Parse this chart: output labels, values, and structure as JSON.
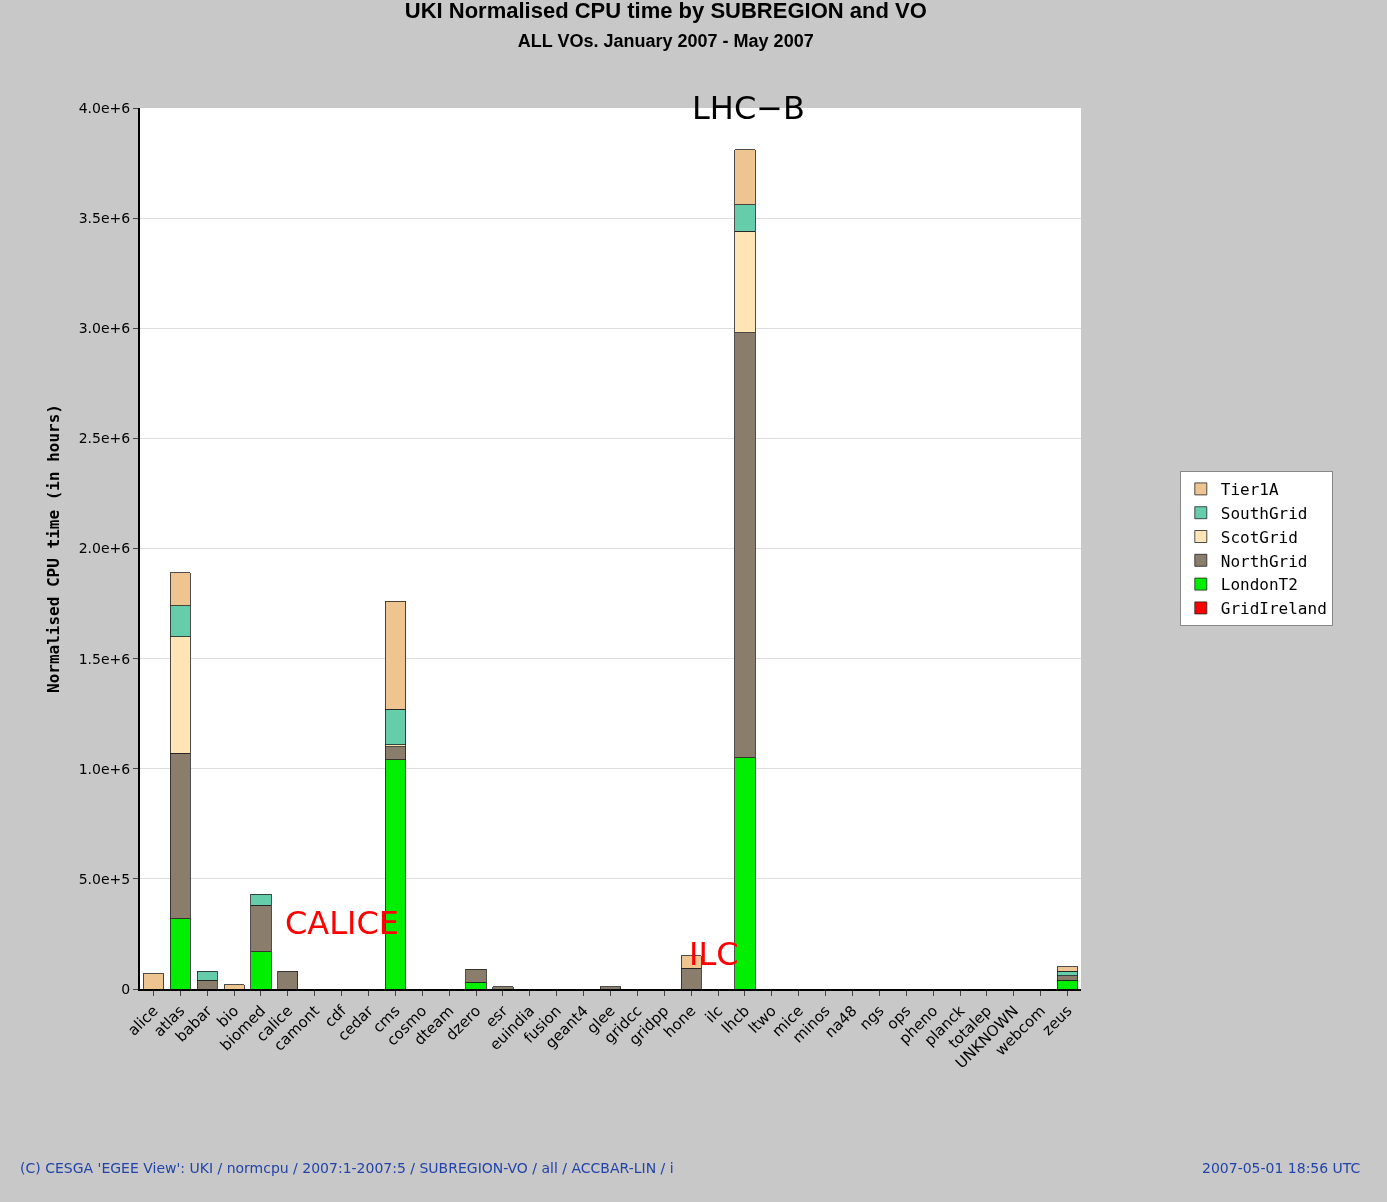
{
  "chart_data": {
    "type": "bar",
    "stacked": true,
    "title": "UKI Normalised CPU time by SUBREGION and VO",
    "subtitle": "ALL VOs. January 2007 - May 2007",
    "ylabel": "Normalised CPU time (in hours)",
    "categories": [
      "alice",
      "atlas",
      "babar",
      "bio",
      "biomed",
      "calice",
      "camont",
      "cdf",
      "cedar",
      "cms",
      "cosmo",
      "dteam",
      "dzero",
      "esr",
      "euindia",
      "fusion",
      "geant4",
      "glee",
      "gridcc",
      "gridpp",
      "hone",
      "ilc",
      "lhcb",
      "ltwo",
      "mice",
      "minos",
      "na48",
      "ngs",
      "ops",
      "pheno",
      "planck",
      "totalep",
      "UNKNOWN",
      "webcom",
      "zeus"
    ],
    "series": [
      {
        "name": "GridIreland",
        "color": "#ff0000",
        "values": [
          0,
          0,
          0,
          0,
          0,
          0,
          0,
          0,
          0,
          0,
          0,
          0,
          0,
          0,
          0,
          0,
          0,
          0,
          0,
          0,
          0,
          0,
          0,
          0,
          0,
          0,
          0,
          0,
          0,
          0,
          0,
          0,
          0,
          0,
          0
        ]
      },
      {
        "name": "LondonT2",
        "color": "#00ee00",
        "values": [
          0,
          320000,
          0,
          0,
          170000,
          0,
          0,
          0,
          0,
          1040000,
          0,
          0,
          30000,
          0,
          0,
          0,
          0,
          0,
          0,
          0,
          0,
          0,
          1050000,
          0,
          0,
          0,
          0,
          0,
          0,
          0,
          0,
          0,
          0,
          0,
          40000
        ]
      },
      {
        "name": "NorthGrid",
        "color": "#8b7d6b",
        "values": [
          0,
          750000,
          40000,
          0,
          210000,
          80000,
          0,
          0,
          0,
          60000,
          0,
          0,
          60000,
          10000,
          0,
          0,
          0,
          10000,
          0,
          0,
          95000,
          0,
          1930000,
          0,
          0,
          0,
          0,
          0,
          0,
          0,
          0,
          0,
          0,
          0,
          20000
        ]
      },
      {
        "name": "ScotGrid",
        "color": "#ffe4b5",
        "values": [
          0,
          530000,
          0,
          0,
          0,
          0,
          0,
          0,
          0,
          10000,
          0,
          0,
          0,
          0,
          0,
          0,
          0,
          0,
          0,
          0,
          0,
          0,
          460000,
          0,
          0,
          0,
          0,
          0,
          0,
          0,
          0,
          0,
          0,
          0,
          0
        ]
      },
      {
        "name": "SouthGrid",
        "color": "#66cdaa",
        "values": [
          0,
          140000,
          40000,
          0,
          50000,
          0,
          0,
          0,
          0,
          160000,
          0,
          0,
          0,
          0,
          0,
          0,
          0,
          0,
          0,
          0,
          0,
          0,
          120000,
          0,
          0,
          0,
          0,
          0,
          0,
          0,
          0,
          0,
          0,
          0,
          20000
        ]
      },
      {
        "name": "Tier1A",
        "color": "#eec591",
        "values": [
          70000,
          150000,
          0,
          20000,
          0,
          0,
          0,
          0,
          0,
          490000,
          0,
          0,
          0,
          0,
          0,
          0,
          0,
          0,
          0,
          0,
          55000,
          0,
          250000,
          0,
          0,
          0,
          0,
          0,
          0,
          0,
          0,
          0,
          0,
          0,
          20000
        ]
      }
    ],
    "ylim": [
      0,
      4000000
    ],
    "yticks": [
      0,
      {
        "value": 500000,
        "label": "5.0e+5"
      },
      {
        "value": 1000000,
        "label": "1.0e+6"
      },
      {
        "value": 1500000,
        "label": "1.5e+6"
      },
      {
        "value": 2000000,
        "label": "2.0e+6"
      },
      {
        "value": 2500000,
        "label": "2.5e+6"
      },
      {
        "value": 3000000,
        "label": "3.0e+6"
      },
      {
        "value": 3500000,
        "label": "3.5e+6"
      },
      {
        "value": 4000000,
        "label": "4.0e+6"
      }
    ],
    "grid": "y",
    "legend": "right",
    "annotations": [
      "LHC−B",
      "CALICE",
      "ILC",
      "(C) CESGA 'EGEE View': UKI / normcpu / 2007:1-2007:5 / SUBREGION-VO / all / ACCBAR-LIN / i",
      "2007-05-01 18:56 UTC"
    ]
  }
}
